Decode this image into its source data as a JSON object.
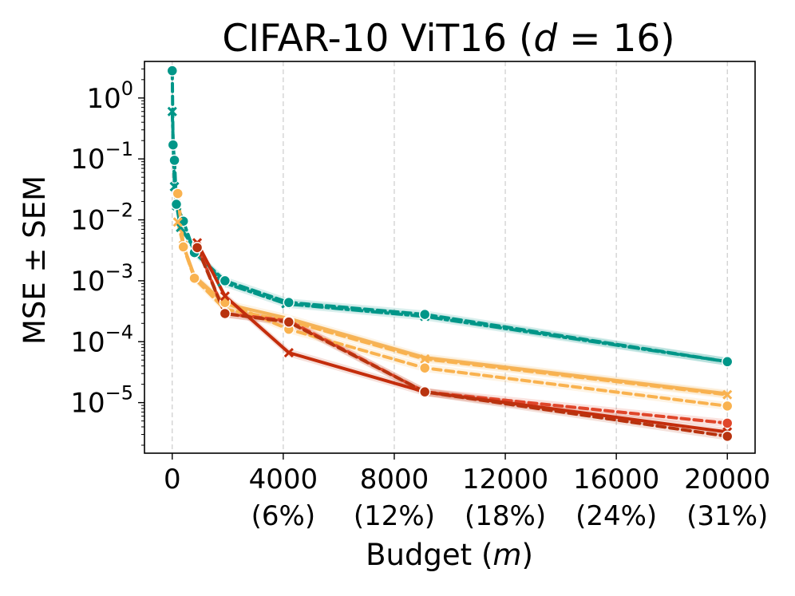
{
  "chart_data": {
    "type": "line",
    "title_prefix": "CIFAR-10 ViT16 (",
    "title_var": "d",
    "title_eq": " = 16)",
    "xlabel_prefix": "Budget (",
    "xlabel_var": "m",
    "xlabel_suffix": ")",
    "ylabel": "MSE ± SEM",
    "xscale": "linear",
    "yscale": "log",
    "xlim": [
      -1000,
      21000
    ],
    "ylim_log10": [
      -5.83,
      0.6
    ],
    "grid": "x-only dashed",
    "x_ticks": [
      {
        "value": 0,
        "label": "0",
        "pct": ""
      },
      {
        "value": 4000,
        "label": "4000",
        "pct": "(6%)"
      },
      {
        "value": 8000,
        "label": "8000",
        "pct": "(12%)"
      },
      {
        "value": 12000,
        "label": "12000",
        "pct": "(18%)"
      },
      {
        "value": 16000,
        "label": "16000",
        "pct": "(24%)"
      },
      {
        "value": 20000,
        "label": "20000",
        "pct": "(31%)"
      }
    ],
    "y_ticks": [
      {
        "exp": 0,
        "base": "10",
        "sup": "0"
      },
      {
        "exp": -1,
        "base": "10",
        "sup": "−1"
      },
      {
        "exp": -2,
        "base": "10",
        "sup": "−2"
      },
      {
        "exp": -3,
        "base": "10",
        "sup": "−3"
      },
      {
        "exp": -4,
        "base": "10",
        "sup": "−4"
      },
      {
        "exp": -5,
        "base": "10",
        "sup": "−5"
      }
    ],
    "series": [
      {
        "name": "teal dash-dot",
        "color": "#009688",
        "dash": "12,5,3,5",
        "marker": "x",
        "band": true,
        "x": [
          0,
          80,
          160,
          300,
          800,
          1800,
          4100,
          9100,
          20000
        ],
        "y": [
          0.6,
          0.035,
          0.017,
          0.0075,
          0.0034,
          0.00095,
          0.00042,
          0.00026,
          4.7e-05
        ]
      },
      {
        "name": "teal dashed",
        "color": "#009688",
        "dash": "10,6",
        "marker": "o",
        "band": true,
        "x": [
          0,
          30,
          80,
          150,
          400,
          800,
          1900,
          4200,
          9100,
          20000
        ],
        "y": [
          2.8,
          0.17,
          0.095,
          0.018,
          0.0095,
          0.0029,
          0.001,
          0.00044,
          0.00028,
          4.7e-05
        ]
      },
      {
        "name": "orange solid",
        "color": "#f4b35a",
        "dash": "",
        "marker": "none",
        "band": true,
        "x": [
          200,
          400,
          800,
          1900,
          4200,
          9100,
          20000
        ],
        "y": [
          0.028,
          0.0038,
          0.0012,
          0.00042,
          0.00024,
          5.5e-05,
          1.4e-05
        ]
      },
      {
        "name": "orange dashed x",
        "color": "#f9b24f",
        "dash": "10,6",
        "marker": "x",
        "band": true,
        "x": [
          200,
          400,
          800,
          1900,
          4200,
          9100,
          20000
        ],
        "y": [
          0.0092,
          0.0038,
          0.0011,
          0.00034,
          0.00022,
          5.2e-05,
          1.35e-05
        ]
      },
      {
        "name": "orange dashed o",
        "color": "#f9b24f",
        "dash": "10,6",
        "marker": "o",
        "band": true,
        "x": [
          200,
          400,
          800,
          1900,
          4200,
          9100,
          20000
        ],
        "y": [
          0.027,
          0.0036,
          0.0011,
          0.00044,
          0.00016,
          3.7e-05,
          8.8e-06
        ]
      },
      {
        "name": "red dashed o",
        "color": "#e0462a",
        "dash": "10,6",
        "marker": "o",
        "band": true,
        "x": [
          900,
          1900,
          4200,
          9100,
          20000
        ],
        "y": [
          0.0038,
          0.00029,
          0.00022,
          1.5e-05,
          4.6e-06
        ]
      },
      {
        "name": "red solid x",
        "color": "#c42d0c",
        "dash": "",
        "marker": "x",
        "band": true,
        "x": [
          900,
          1900,
          4200,
          9100,
          20000
        ],
        "y": [
          0.0042,
          0.00056,
          6.6e-05,
          1.5e-05,
          3.3e-06
        ]
      },
      {
        "name": "dark red dashed o",
        "color": "#b8330f",
        "dash": "10,6",
        "marker": "o",
        "band": true,
        "x": [
          900,
          1900,
          4200,
          9100,
          20000
        ],
        "y": [
          0.0035,
          0.00029,
          0.00021,
          1.5e-05,
          2.8e-06
        ]
      }
    ]
  }
}
